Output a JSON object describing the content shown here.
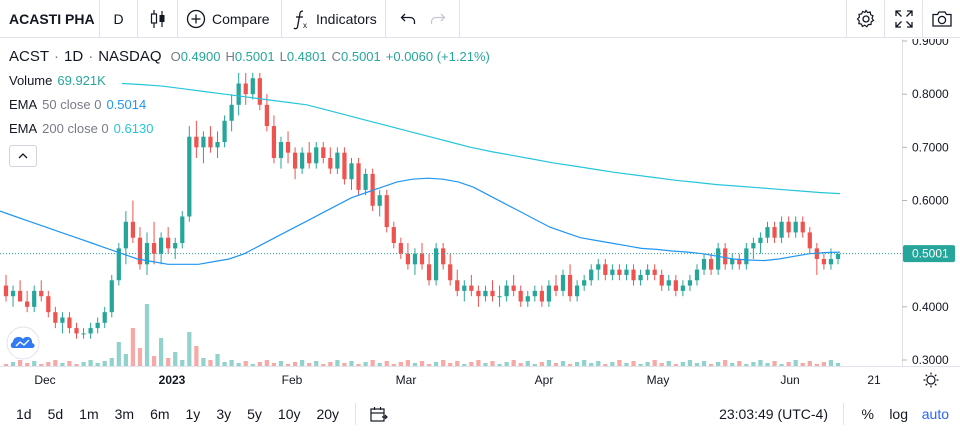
{
  "toolbar": {
    "symbol": "ACASTI PHA",
    "interval": "D",
    "compare_label": "Compare",
    "indicators_label": "Indicators"
  },
  "legend": {
    "ticker": "ACST",
    "interval": "1D",
    "exchange": "NASDAQ",
    "open_label": "O",
    "open": "0.4900",
    "high_label": "H",
    "high": "0.5001",
    "low_label": "L",
    "low": "0.4801",
    "close_label": "C",
    "close": "0.5001",
    "change": "+0.0060 (+1.21%)",
    "volume_label": "Volume",
    "volume": "69.921K",
    "ema50_label": "EMA",
    "ema50_params": "50 close 0",
    "ema50_value": "0.5014",
    "ema200_label": "EMA",
    "ema200_params": "200 close 0",
    "ema200_value": "0.6130"
  },
  "price_axis": {
    "ticks": [
      "0.9000",
      "0.8000",
      "0.7000",
      "0.6000",
      "0.5000",
      "0.4000",
      "0.3000"
    ],
    "last_price": "0.5001"
  },
  "time_axis": {
    "labels": [
      "Dec",
      "2023",
      "Feb",
      "Mar",
      "Apr",
      "May",
      "Jun",
      "21"
    ]
  },
  "bottom": {
    "ranges": [
      "1d",
      "5d",
      "1m",
      "3m",
      "6m",
      "1y",
      "3y",
      "5y",
      "10y",
      "20y"
    ],
    "clock": "23:03:49 (UTC-4)",
    "percent": "%",
    "log": "log",
    "auto": "auto"
  },
  "colors": {
    "up": "#26a69a",
    "down": "#ef5350",
    "ema50": "#2196f3",
    "ema200": "#26c6da",
    "accent": "#2962ff"
  },
  "chart_data": {
    "type": "candlestick",
    "y_range": [
      0.28,
      0.91
    ],
    "price_ticks": [
      0.9,
      0.8,
      0.7,
      0.6,
      0.5,
      0.4,
      0.3
    ],
    "last_close": 0.5001,
    "ohlc": [
      [
        0.44,
        0.46,
        0.41,
        0.42
      ],
      [
        0.42,
        0.44,
        0.4,
        0.43
      ],
      [
        0.43,
        0.45,
        0.41,
        0.41
      ],
      [
        0.41,
        0.43,
        0.39,
        0.4
      ],
      [
        0.4,
        0.44,
        0.39,
        0.43
      ],
      [
        0.43,
        0.45,
        0.41,
        0.42
      ],
      [
        0.42,
        0.43,
        0.38,
        0.39
      ],
      [
        0.39,
        0.4,
        0.36,
        0.37
      ],
      [
        0.37,
        0.39,
        0.35,
        0.38
      ],
      [
        0.38,
        0.39,
        0.35,
        0.36
      ],
      [
        0.36,
        0.37,
        0.34,
        0.35
      ],
      [
        0.35,
        0.36,
        0.34,
        0.35
      ],
      [
        0.35,
        0.37,
        0.34,
        0.36
      ],
      [
        0.36,
        0.38,
        0.35,
        0.37
      ],
      [
        0.37,
        0.4,
        0.36,
        0.39
      ],
      [
        0.39,
        0.46,
        0.38,
        0.45
      ],
      [
        0.45,
        0.52,
        0.44,
        0.51
      ],
      [
        0.51,
        0.58,
        0.48,
        0.56
      ],
      [
        0.56,
        0.6,
        0.52,
        0.53
      ],
      [
        0.53,
        0.55,
        0.47,
        0.48
      ],
      [
        0.48,
        0.54,
        0.46,
        0.52
      ],
      [
        0.52,
        0.56,
        0.48,
        0.5
      ],
      [
        0.5,
        0.54,
        0.48,
        0.53
      ],
      [
        0.53,
        0.55,
        0.5,
        0.51
      ],
      [
        0.51,
        0.53,
        0.49,
        0.52
      ],
      [
        0.52,
        0.58,
        0.51,
        0.57
      ],
      [
        0.57,
        0.74,
        0.56,
        0.72
      ],
      [
        0.72,
        0.75,
        0.68,
        0.7
      ],
      [
        0.7,
        0.73,
        0.67,
        0.72
      ],
      [
        0.72,
        0.74,
        0.69,
        0.7
      ],
      [
        0.7,
        0.73,
        0.68,
        0.71
      ],
      [
        0.71,
        0.76,
        0.7,
        0.75
      ],
      [
        0.75,
        0.8,
        0.73,
        0.78
      ],
      [
        0.78,
        0.84,
        0.76,
        0.82
      ],
      [
        0.82,
        0.84,
        0.78,
        0.8
      ],
      [
        0.8,
        0.84,
        0.79,
        0.83
      ],
      [
        0.83,
        0.84,
        0.77,
        0.78
      ],
      [
        0.78,
        0.8,
        0.73,
        0.74
      ],
      [
        0.74,
        0.76,
        0.67,
        0.68
      ],
      [
        0.68,
        0.72,
        0.66,
        0.71
      ],
      [
        0.71,
        0.73,
        0.67,
        0.69
      ],
      [
        0.69,
        0.7,
        0.64,
        0.66
      ],
      [
        0.66,
        0.7,
        0.65,
        0.69
      ],
      [
        0.69,
        0.71,
        0.66,
        0.67
      ],
      [
        0.67,
        0.71,
        0.66,
        0.7
      ],
      [
        0.7,
        0.71,
        0.67,
        0.68
      ],
      [
        0.68,
        0.7,
        0.65,
        0.66
      ],
      [
        0.66,
        0.7,
        0.65,
        0.69
      ],
      [
        0.69,
        0.7,
        0.63,
        0.64
      ],
      [
        0.64,
        0.68,
        0.62,
        0.67
      ],
      [
        0.67,
        0.68,
        0.61,
        0.62
      ],
      [
        0.62,
        0.66,
        0.61,
        0.65
      ],
      [
        0.65,
        0.66,
        0.58,
        0.59
      ],
      [
        0.59,
        0.62,
        0.57,
        0.61
      ],
      [
        0.61,
        0.62,
        0.54,
        0.55
      ],
      [
        0.55,
        0.56,
        0.51,
        0.52
      ],
      [
        0.52,
        0.53,
        0.49,
        0.5
      ],
      [
        0.5,
        0.52,
        0.47,
        0.48
      ],
      [
        0.48,
        0.51,
        0.46,
        0.5
      ],
      [
        0.5,
        0.52,
        0.47,
        0.48
      ],
      [
        0.48,
        0.5,
        0.44,
        0.45
      ],
      [
        0.45,
        0.52,
        0.44,
        0.51
      ],
      [
        0.51,
        0.52,
        0.47,
        0.48
      ],
      [
        0.48,
        0.5,
        0.44,
        0.45
      ],
      [
        0.45,
        0.47,
        0.42,
        0.43
      ],
      [
        0.43,
        0.45,
        0.41,
        0.44
      ],
      [
        0.44,
        0.46,
        0.42,
        0.43
      ],
      [
        0.43,
        0.44,
        0.4,
        0.42
      ],
      [
        0.42,
        0.44,
        0.41,
        0.43
      ],
      [
        0.43,
        0.45,
        0.41,
        0.42
      ],
      [
        0.42,
        0.44,
        0.4,
        0.42
      ],
      [
        0.42,
        0.45,
        0.41,
        0.44
      ],
      [
        0.44,
        0.46,
        0.42,
        0.43
      ],
      [
        0.43,
        0.44,
        0.4,
        0.41
      ],
      [
        0.41,
        0.43,
        0.4,
        0.42
      ],
      [
        0.42,
        0.44,
        0.41,
        0.43
      ],
      [
        0.43,
        0.44,
        0.4,
        0.41
      ],
      [
        0.41,
        0.45,
        0.4,
        0.44
      ],
      [
        0.44,
        0.46,
        0.42,
        0.43
      ],
      [
        0.43,
        0.47,
        0.42,
        0.46
      ],
      [
        0.46,
        0.48,
        0.41,
        0.42
      ],
      [
        0.42,
        0.45,
        0.41,
        0.44
      ],
      [
        0.44,
        0.46,
        0.43,
        0.45
      ],
      [
        0.45,
        0.48,
        0.44,
        0.47
      ],
      [
        0.47,
        0.49,
        0.45,
        0.48
      ],
      [
        0.48,
        0.49,
        0.45,
        0.46
      ],
      [
        0.46,
        0.48,
        0.45,
        0.47
      ],
      [
        0.47,
        0.48,
        0.45,
        0.46
      ],
      [
        0.46,
        0.48,
        0.45,
        0.47
      ],
      [
        0.47,
        0.48,
        0.44,
        0.45
      ],
      [
        0.45,
        0.47,
        0.44,
        0.46
      ],
      [
        0.46,
        0.48,
        0.45,
        0.47
      ],
      [
        0.47,
        0.48,
        0.45,
        0.46
      ],
      [
        0.46,
        0.47,
        0.43,
        0.44
      ],
      [
        0.44,
        0.46,
        0.43,
        0.45
      ],
      [
        0.45,
        0.46,
        0.42,
        0.43
      ],
      [
        0.43,
        0.45,
        0.42,
        0.44
      ],
      [
        0.44,
        0.46,
        0.43,
        0.45
      ],
      [
        0.45,
        0.48,
        0.44,
        0.47
      ],
      [
        0.47,
        0.5,
        0.46,
        0.49
      ],
      [
        0.49,
        0.5,
        0.46,
        0.47
      ],
      [
        0.47,
        0.52,
        0.46,
        0.51
      ],
      [
        0.51,
        0.52,
        0.47,
        0.48
      ],
      [
        0.48,
        0.5,
        0.47,
        0.49
      ],
      [
        0.49,
        0.5,
        0.47,
        0.48
      ],
      [
        0.48,
        0.52,
        0.47,
        0.51
      ],
      [
        0.51,
        0.53,
        0.49,
        0.52
      ],
      [
        0.52,
        0.54,
        0.5,
        0.53
      ],
      [
        0.53,
        0.56,
        0.52,
        0.55
      ],
      [
        0.55,
        0.56,
        0.52,
        0.53
      ],
      [
        0.53,
        0.57,
        0.52,
        0.56
      ],
      [
        0.56,
        0.57,
        0.53,
        0.54
      ],
      [
        0.54,
        0.57,
        0.53,
        0.56
      ],
      [
        0.56,
        0.57,
        0.53,
        0.54
      ],
      [
        0.54,
        0.55,
        0.5,
        0.51
      ],
      [
        0.51,
        0.52,
        0.46,
        0.49
      ],
      [
        0.49,
        0.5,
        0.47,
        0.48
      ],
      [
        0.48,
        0.51,
        0.47,
        0.49
      ],
      [
        0.49,
        0.5,
        0.48,
        0.5
      ]
    ],
    "ema50": [
      0.58,
      0.57,
      0.56,
      0.55,
      0.54,
      0.53,
      0.52,
      0.51,
      0.5,
      0.49,
      0.485,
      0.48,
      0.48,
      0.48,
      0.485,
      0.49,
      0.5,
      0.515,
      0.53,
      0.545,
      0.56,
      0.575,
      0.59,
      0.605,
      0.615,
      0.625,
      0.635,
      0.64,
      0.642,
      0.64,
      0.635,
      0.625,
      0.61,
      0.595,
      0.58,
      0.565,
      0.55,
      0.54,
      0.53,
      0.525,
      0.52,
      0.515,
      0.51,
      0.508,
      0.505,
      0.503,
      0.5,
      0.495,
      0.49,
      0.488,
      0.487,
      0.49,
      0.495,
      0.5,
      0.502,
      0.503
    ],
    "ema200": [
      0.82,
      0.818,
      0.815,
      0.81,
      0.805,
      0.8,
      0.795,
      0.79,
      0.785,
      0.78,
      0.77,
      0.76,
      0.75,
      0.74,
      0.73,
      0.72,
      0.71,
      0.7,
      0.692,
      0.685,
      0.678,
      0.671,
      0.665,
      0.659,
      0.653,
      0.648,
      0.643,
      0.638,
      0.634,
      0.63,
      0.627,
      0.624,
      0.621,
      0.618,
      0.615,
      0.613
    ],
    "volume_note": "volume bars beneath candles"
  }
}
